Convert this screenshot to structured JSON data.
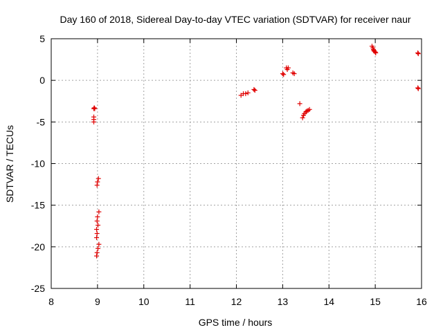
{
  "chart_data": {
    "type": "scatter",
    "title": "Day 160 of 2018, Sidereal Day-to-day VTEC variation (SDTVAR) for receiver naur",
    "xlabel": "GPS time / hours",
    "ylabel": "SDTVAR / TECUs",
    "xlim": [
      8,
      16
    ],
    "ylim": [
      -25,
      5
    ],
    "xticks": [
      "8",
      "9",
      "10",
      "11",
      "12",
      "13",
      "14",
      "15",
      "16"
    ],
    "yticks": [
      "5",
      "0",
      "-5",
      "-10",
      "-15",
      "-20",
      "-25"
    ],
    "xtick_values": [
      8,
      9,
      10,
      11,
      12,
      13,
      14,
      15,
      16
    ],
    "ytick_values": [
      5,
      0,
      -5,
      -10,
      -15,
      -20,
      -25
    ],
    "grid": true,
    "marker": "+",
    "color": "#e00000",
    "points": [
      [
        8.92,
        -3.4
      ],
      [
        8.93,
        -3.3
      ],
      [
        8.94,
        -3.4
      ],
      [
        8.92,
        -4.4
      ],
      [
        8.92,
        -4.7
      ],
      [
        8.92,
        -5.0
      ],
      [
        9.02,
        -11.8
      ],
      [
        9.0,
        -12.2
      ],
      [
        8.99,
        -12.6
      ],
      [
        9.03,
        -15.8
      ],
      [
        9.0,
        -16.4
      ],
      [
        8.99,
        -16.9
      ],
      [
        9.01,
        -17.4
      ],
      [
        8.98,
        -17.9
      ],
      [
        8.99,
        -18.4
      ],
      [
        8.98,
        -18.9
      ],
      [
        9.03,
        -19.7
      ],
      [
        9.01,
        -20.2
      ],
      [
        8.99,
        -20.7
      ],
      [
        8.98,
        -21.1
      ],
      [
        12.1,
        -1.8
      ],
      [
        12.15,
        -1.6
      ],
      [
        12.2,
        -1.6
      ],
      [
        12.25,
        -1.5
      ],
      [
        12.38,
        -1.1
      ],
      [
        12.4,
        -1.2
      ],
      [
        13.0,
        0.8
      ],
      [
        13.02,
        0.7
      ],
      [
        13.08,
        1.5
      ],
      [
        13.12,
        1.5
      ],
      [
        13.1,
        1.3
      ],
      [
        13.25,
        0.8
      ],
      [
        13.22,
        0.9
      ],
      [
        13.37,
        -2.8
      ],
      [
        13.43,
        -4.5
      ],
      [
        13.45,
        -4.2
      ],
      [
        13.47,
        -4.0
      ],
      [
        13.5,
        -3.8
      ],
      [
        13.52,
        -3.7
      ],
      [
        13.55,
        -3.6
      ],
      [
        13.58,
        -3.5
      ],
      [
        14.93,
        4.1
      ],
      [
        14.95,
        3.9
      ],
      [
        14.96,
        3.7
      ],
      [
        14.97,
        3.6
      ],
      [
        14.98,
        3.5
      ],
      [
        15.0,
        3.4
      ],
      [
        15.01,
        3.3
      ],
      [
        15.92,
        3.3
      ],
      [
        15.93,
        3.2
      ],
      [
        15.92,
        -0.9
      ],
      [
        15.93,
        -1.0
      ]
    ]
  }
}
